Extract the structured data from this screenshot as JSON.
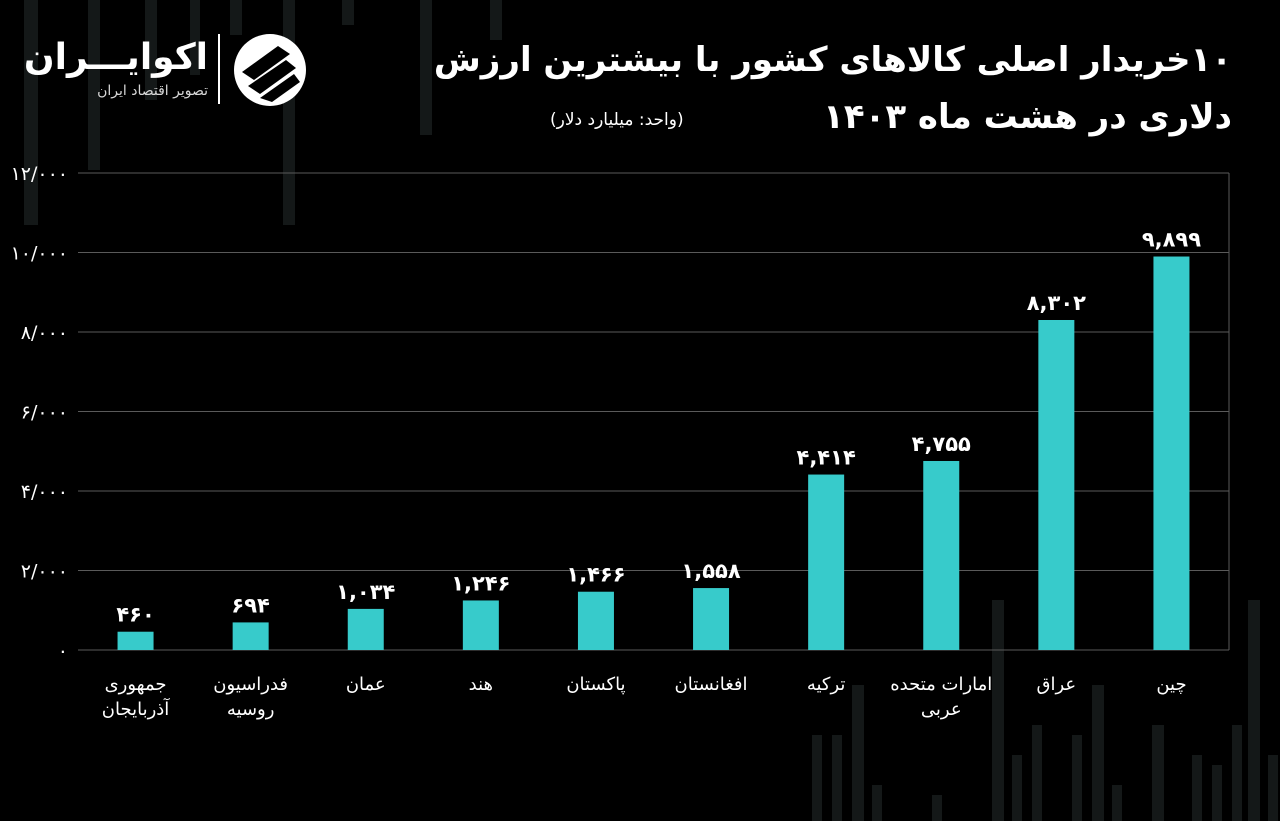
{
  "header": {
    "title_line1": "۱۰خریدار اصلی کالاهای کشور با بیشترین ارزش",
    "title_line2": "دلاری در هشت ماه ۱۴۰۳",
    "unit": "(واحد: میلیارد دلار)"
  },
  "logo": {
    "name": "اکوایـــران",
    "subtitle": "تصویر اقتصاد ایران"
  },
  "colors": {
    "background": "#000000",
    "bar": "#37cbcb",
    "grid": "#5a5a5a",
    "text": "#ffffff",
    "deco": "#3a4444"
  },
  "chart_data": {
    "type": "bar",
    "categories": [
      [
        "جمهوری",
        "آذربایجان"
      ],
      [
        "فدراسیون",
        "روسیه"
      ],
      [
        "عمان"
      ],
      [
        "هند"
      ],
      [
        "پاکستان"
      ],
      [
        "افغانستان"
      ],
      [
        "ترکیه"
      ],
      [
        "امارات متحده",
        "عربی"
      ],
      [
        "عراق"
      ],
      [
        "چین"
      ]
    ],
    "values": [
      460,
      694,
      1034,
      1246,
      1466,
      1558,
      4414,
      4755,
      8302,
      9899
    ],
    "value_labels": [
      "۴۶۰",
      "۶۹۴",
      "۱,۰۳۴",
      "۱,۲۴۶",
      "۱,۴۶۶",
      "۱,۵۵۸",
      "۴,۴۱۴",
      "۴,۷۵۵",
      "۸,۳۰۲",
      "۹,۸۹۹"
    ],
    "y_ticks": [
      0,
      2000,
      4000,
      6000,
      8000,
      10000,
      12000
    ],
    "y_tick_labels": [
      "۰",
      "۲/۰۰۰",
      "۴/۰۰۰",
      "۶/۰۰۰",
      "۸/۰۰۰",
      "۱۰/۰۰۰",
      "۱۲/۰۰۰"
    ],
    "ylim": [
      0,
      12000
    ],
    "grid": true,
    "legend": "none"
  }
}
